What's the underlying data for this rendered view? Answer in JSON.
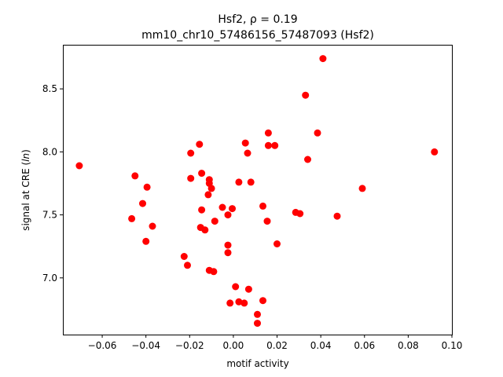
{
  "chart_data": {
    "type": "scatter",
    "title_line1": "Hsf2, ρ = 0.19",
    "title_line2": "mm10_chr10_57486156_57487093 (Hsf2)",
    "xlabel": "motif activity",
    "ylabel_prefix": "signal at CRE (",
    "ylabel_italic": "ln",
    "ylabel_suffix": ")",
    "xlim": [
      -0.078,
      0.1
    ],
    "ylim": [
      6.55,
      8.85
    ],
    "xticks": [
      -0.06,
      -0.04,
      -0.02,
      0.0,
      0.02,
      0.04,
      0.06,
      0.08,
      0.1
    ],
    "xtick_labels": [
      "−0.06",
      "−0.04",
      "−0.02",
      "0.00",
      "0.02",
      "0.04",
      "0.06",
      "0.08",
      "0.10"
    ],
    "yticks": [
      7.0,
      7.5,
      8.0,
      8.5
    ],
    "ytick_labels": [
      "7.0",
      "7.5",
      "8.0",
      "8.5"
    ],
    "grid": false,
    "marker_color": "#ff0000",
    "points": [
      {
        "x": -0.0705,
        "y": 7.89
      },
      {
        "x": -0.045,
        "y": 7.81
      },
      {
        "x": -0.0395,
        "y": 7.72
      },
      {
        "x": -0.0415,
        "y": 7.59
      },
      {
        "x": -0.0465,
        "y": 7.47
      },
      {
        "x": -0.037,
        "y": 7.41
      },
      {
        "x": -0.04,
        "y": 7.29
      },
      {
        "x": -0.0225,
        "y": 7.17
      },
      {
        "x": -0.021,
        "y": 7.1
      },
      {
        "x": -0.0195,
        "y": 7.99
      },
      {
        "x": -0.0195,
        "y": 7.79
      },
      {
        "x": -0.0155,
        "y": 8.06
      },
      {
        "x": -0.0145,
        "y": 7.83
      },
      {
        "x": -0.011,
        "y": 7.78
      },
      {
        "x": -0.011,
        "y": 7.75
      },
      {
        "x": -0.01,
        "y": 7.71
      },
      {
        "x": -0.0115,
        "y": 7.66
      },
      {
        "x": -0.0145,
        "y": 7.54
      },
      {
        "x": -0.015,
        "y": 7.4
      },
      {
        "x": -0.013,
        "y": 7.38
      },
      {
        "x": -0.0085,
        "y": 7.45
      },
      {
        "x": -0.011,
        "y": 7.06
      },
      {
        "x": -0.009,
        "y": 7.05
      },
      {
        "x": -0.005,
        "y": 7.56
      },
      {
        "x": -0.0025,
        "y": 7.5
      },
      {
        "x": -0.0005,
        "y": 7.55
      },
      {
        "x": -0.0025,
        "y": 7.26
      },
      {
        "x": -0.0025,
        "y": 7.2
      },
      {
        "x": -0.0015,
        "y": 6.8
      },
      {
        "x": 0.001,
        "y": 6.93
      },
      {
        "x": 0.0025,
        "y": 6.81
      },
      {
        "x": 0.005,
        "y": 6.8
      },
      {
        "x": 0.007,
        "y": 6.91
      },
      {
        "x": 0.0025,
        "y": 7.76
      },
      {
        "x": 0.0055,
        "y": 8.07
      },
      {
        "x": 0.0065,
        "y": 7.99
      },
      {
        "x": 0.008,
        "y": 7.76
      },
      {
        "x": 0.011,
        "y": 6.71
      },
      {
        "x": 0.011,
        "y": 6.64
      },
      {
        "x": 0.0135,
        "y": 6.82
      },
      {
        "x": 0.0135,
        "y": 7.57
      },
      {
        "x": 0.0155,
        "y": 7.45
      },
      {
        "x": 0.016,
        "y": 8.15
      },
      {
        "x": 0.016,
        "y": 8.05
      },
      {
        "x": 0.019,
        "y": 8.05
      },
      {
        "x": 0.02,
        "y": 7.27
      },
      {
        "x": 0.0285,
        "y": 7.52
      },
      {
        "x": 0.0305,
        "y": 7.51
      },
      {
        "x": 0.033,
        "y": 8.45
      },
      {
        "x": 0.034,
        "y": 7.94
      },
      {
        "x": 0.0385,
        "y": 8.15
      },
      {
        "x": 0.041,
        "y": 8.74
      },
      {
        "x": 0.0475,
        "y": 7.49
      },
      {
        "x": 0.059,
        "y": 7.71
      },
      {
        "x": 0.092,
        "y": 8.0
      }
    ]
  }
}
